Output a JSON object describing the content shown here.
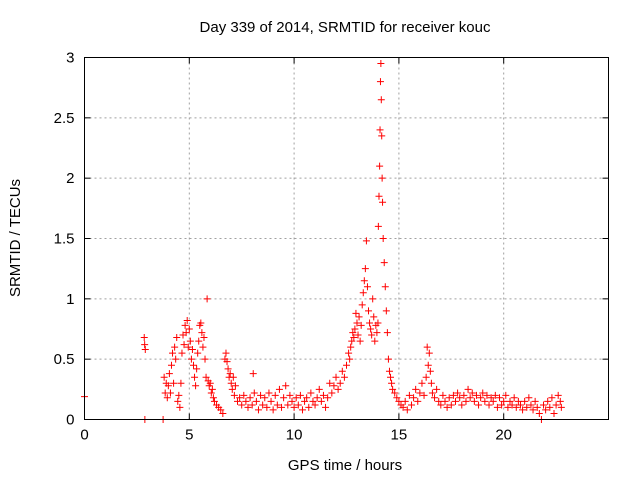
{
  "chart_data": {
    "type": "scatter",
    "title": "Day 339 of 2014, SRMTID for receiver kouc",
    "xlabel": "GPS time / hours",
    "ylabel": "SRMTID / TECUs",
    "xlim": [
      0,
      25
    ],
    "ylim": [
      0,
      3
    ],
    "xticks": [
      0,
      5,
      10,
      15,
      20
    ],
    "yticks": [
      0,
      0.5,
      1,
      1.5,
      2,
      2.5,
      3
    ],
    "xtick_labels": [
      "0",
      "5",
      "10",
      "15",
      "20"
    ],
    "ytick_labels": [
      "0",
      "0.5",
      "1",
      "1.5",
      "2",
      "2.5",
      "3"
    ],
    "grid": true,
    "marker": "+",
    "color": "#ff0000",
    "series": [
      {
        "name": "SRMTID",
        "points": [
          [
            0.0,
            0.19
          ],
          [
            2.85,
            0.68
          ],
          [
            2.87,
            0.62
          ],
          [
            2.9,
            0.58
          ],
          [
            2.88,
            0.0
          ],
          [
            3.75,
            0.0
          ],
          [
            3.8,
            0.35
          ],
          [
            3.85,
            0.22
          ],
          [
            3.9,
            0.3
          ],
          [
            3.95,
            0.18
          ],
          [
            4.0,
            0.28
          ],
          [
            4.05,
            0.38
          ],
          [
            4.1,
            0.22
          ],
          [
            4.15,
            0.45
          ],
          [
            4.2,
            0.55
          ],
          [
            4.25,
            0.3
          ],
          [
            4.3,
            0.6
          ],
          [
            4.35,
            0.5
          ],
          [
            4.4,
            0.68
          ],
          [
            4.45,
            0.15
          ],
          [
            4.5,
            0.2
          ],
          [
            4.55,
            0.1
          ],
          [
            4.6,
            0.3
          ],
          [
            4.65,
            0.55
          ],
          [
            4.7,
            0.7
          ],
          [
            4.75,
            0.62
          ],
          [
            4.8,
            0.78
          ],
          [
            4.85,
            0.72
          ],
          [
            4.9,
            0.82
          ],
          [
            4.95,
            0.6
          ],
          [
            5.0,
            0.75
          ],
          [
            5.05,
            0.65
          ],
          [
            5.1,
            0.5
          ],
          [
            5.15,
            0.58
          ],
          [
            5.2,
            0.45
          ],
          [
            5.25,
            0.35
          ],
          [
            5.3,
            0.28
          ],
          [
            5.35,
            0.42
          ],
          [
            5.4,
            0.55
          ],
          [
            5.45,
            0.65
          ],
          [
            5.5,
            0.78
          ],
          [
            5.55,
            0.8
          ],
          [
            5.6,
            0.72
          ],
          [
            5.65,
            0.6
          ],
          [
            5.7,
            0.68
          ],
          [
            5.75,
            0.5
          ],
          [
            5.8,
            0.35
          ],
          [
            5.85,
            1.0
          ],
          [
            5.9,
            0.32
          ],
          [
            5.95,
            0.28
          ],
          [
            6.0,
            0.3
          ],
          [
            6.05,
            0.22
          ],
          [
            6.1,
            0.25
          ],
          [
            6.15,
            0.18
          ],
          [
            6.2,
            0.15
          ],
          [
            6.3,
            0.12
          ],
          [
            6.4,
            0.1
          ],
          [
            6.5,
            0.08
          ],
          [
            6.6,
            0.05
          ],
          [
            6.7,
            0.5
          ],
          [
            6.75,
            0.55
          ],
          [
            6.8,
            0.48
          ],
          [
            6.85,
            0.42
          ],
          [
            6.9,
            0.35
          ],
          [
            6.95,
            0.38
          ],
          [
            7.0,
            0.3
          ],
          [
            7.05,
            0.25
          ],
          [
            7.1,
            0.35
          ],
          [
            7.15,
            0.2
          ],
          [
            7.2,
            0.28
          ],
          [
            7.3,
            0.15
          ],
          [
            7.4,
            0.18
          ],
          [
            7.5,
            0.12
          ],
          [
            7.6,
            0.2
          ],
          [
            7.7,
            0.15
          ],
          [
            7.8,
            0.1
          ],
          [
            7.9,
            0.18
          ],
          [
            8.0,
            0.12
          ],
          [
            8.05,
            0.38
          ],
          [
            8.1,
            0.22
          ],
          [
            8.2,
            0.15
          ],
          [
            8.3,
            0.08
          ],
          [
            8.4,
            0.2
          ],
          [
            8.5,
            0.12
          ],
          [
            8.6,
            0.18
          ],
          [
            8.7,
            0.1
          ],
          [
            8.8,
            0.22
          ],
          [
            8.9,
            0.15
          ],
          [
            9.0,
            0.08
          ],
          [
            9.1,
            0.2
          ],
          [
            9.2,
            0.12
          ],
          [
            9.3,
            0.25
          ],
          [
            9.4,
            0.1
          ],
          [
            9.5,
            0.18
          ],
          [
            9.6,
            0.28
          ],
          [
            9.7,
            0.12
          ],
          [
            9.8,
            0.2
          ],
          [
            9.9,
            0.15
          ],
          [
            10.0,
            0.1
          ],
          [
            10.1,
            0.18
          ],
          [
            10.2,
            0.12
          ],
          [
            10.3,
            0.2
          ],
          [
            10.4,
            0.08
          ],
          [
            10.5,
            0.15
          ],
          [
            10.6,
            0.18
          ],
          [
            10.7,
            0.1
          ],
          [
            10.8,
            0.22
          ],
          [
            10.9,
            0.15
          ],
          [
            11.0,
            0.12
          ],
          [
            11.1,
            0.18
          ],
          [
            11.2,
            0.25
          ],
          [
            11.3,
            0.15
          ],
          [
            11.4,
            0.2
          ],
          [
            11.5,
            0.1
          ],
          [
            11.6,
            0.18
          ],
          [
            11.7,
            0.3
          ],
          [
            11.8,
            0.22
          ],
          [
            11.9,
            0.28
          ],
          [
            12.0,
            0.35
          ],
          [
            12.1,
            0.25
          ],
          [
            12.2,
            0.3
          ],
          [
            12.3,
            0.4
          ],
          [
            12.4,
            0.35
          ],
          [
            12.5,
            0.45
          ],
          [
            12.6,
            0.55
          ],
          [
            12.65,
            0.5
          ],
          [
            12.7,
            0.6
          ],
          [
            12.75,
            0.65
          ],
          [
            12.8,
            0.72
          ],
          [
            12.85,
            0.68
          ],
          [
            12.9,
            0.75
          ],
          [
            12.95,
            0.88
          ],
          [
            13.0,
            0.8
          ],
          [
            13.05,
            0.7
          ],
          [
            13.1,
            0.85
          ],
          [
            13.15,
            0.65
          ],
          [
            13.2,
            0.78
          ],
          [
            13.25,
            0.95
          ],
          [
            13.3,
            1.05
          ],
          [
            13.35,
            1.15
          ],
          [
            13.4,
            1.25
          ],
          [
            13.45,
            1.48
          ],
          [
            13.5,
            1.1
          ],
          [
            13.55,
            0.9
          ],
          [
            13.6,
            0.8
          ],
          [
            13.65,
            0.75
          ],
          [
            13.7,
            0.7
          ],
          [
            13.75,
            1.0
          ],
          [
            13.8,
            0.85
          ],
          [
            13.85,
            0.65
          ],
          [
            13.9,
            0.78
          ],
          [
            13.95,
            0.72
          ],
          [
            14.0,
            0.8
          ],
          [
            14.02,
            1.6
          ],
          [
            14.05,
            1.85
          ],
          [
            14.08,
            2.1
          ],
          [
            14.1,
            2.4
          ],
          [
            14.12,
            2.8
          ],
          [
            14.14,
            2.95
          ],
          [
            14.16,
            2.65
          ],
          [
            14.18,
            2.35
          ],
          [
            14.2,
            2.0
          ],
          [
            14.22,
            1.8
          ],
          [
            14.25,
            1.5
          ],
          [
            14.3,
            1.3
          ],
          [
            14.35,
            1.1
          ],
          [
            14.4,
            0.9
          ],
          [
            14.45,
            0.72
          ],
          [
            14.5,
            0.5
          ],
          [
            14.55,
            0.4
          ],
          [
            14.6,
            0.35
          ],
          [
            14.65,
            0.3
          ],
          [
            14.7,
            0.25
          ],
          [
            14.8,
            0.22
          ],
          [
            14.9,
            0.18
          ],
          [
            15.0,
            0.15
          ],
          [
            15.1,
            0.12
          ],
          [
            15.2,
            0.1
          ],
          [
            15.3,
            0.15
          ],
          [
            15.4,
            0.08
          ],
          [
            15.5,
            0.2
          ],
          [
            15.6,
            0.12
          ],
          [
            15.7,
            0.18
          ],
          [
            15.8,
            0.25
          ],
          [
            15.9,
            0.15
          ],
          [
            16.0,
            0.22
          ],
          [
            16.1,
            0.3
          ],
          [
            16.2,
            0.2
          ],
          [
            16.3,
            0.35
          ],
          [
            16.35,
            0.6
          ],
          [
            16.4,
            0.45
          ],
          [
            16.45,
            0.55
          ],
          [
            16.5,
            0.4
          ],
          [
            16.55,
            0.3
          ],
          [
            16.6,
            0.22
          ],
          [
            16.7,
            0.18
          ],
          [
            16.8,
            0.25
          ],
          [
            16.9,
            0.15
          ],
          [
            17.0,
            0.12
          ],
          [
            17.1,
            0.2
          ],
          [
            17.2,
            0.15
          ],
          [
            17.3,
            0.1
          ],
          [
            17.4,
            0.18
          ],
          [
            17.5,
            0.12
          ],
          [
            17.6,
            0.2
          ],
          [
            17.7,
            0.15
          ],
          [
            17.8,
            0.22
          ],
          [
            17.9,
            0.18
          ],
          [
            18.0,
            0.12
          ],
          [
            18.1,
            0.2
          ],
          [
            18.2,
            0.15
          ],
          [
            18.3,
            0.25
          ],
          [
            18.4,
            0.18
          ],
          [
            18.5,
            0.22
          ],
          [
            18.6,
            0.15
          ],
          [
            18.7,
            0.2
          ],
          [
            18.8,
            0.12
          ],
          [
            18.9,
            0.18
          ],
          [
            19.0,
            0.22
          ],
          [
            19.1,
            0.15
          ],
          [
            19.2,
            0.2
          ],
          [
            19.3,
            0.12
          ],
          [
            19.4,
            0.18
          ],
          [
            19.5,
            0.15
          ],
          [
            19.6,
            0.2
          ],
          [
            19.7,
            0.1
          ],
          [
            19.8,
            0.18
          ],
          [
            19.9,
            0.12
          ],
          [
            20.0,
            0.15
          ],
          [
            20.1,
            0.2
          ],
          [
            20.2,
            0.1
          ],
          [
            20.3,
            0.15
          ],
          [
            20.4,
            0.12
          ],
          [
            20.5,
            0.18
          ],
          [
            20.6,
            0.1
          ],
          [
            20.7,
            0.15
          ],
          [
            20.8,
            0.12
          ],
          [
            20.9,
            0.08
          ],
          [
            21.0,
            0.15
          ],
          [
            21.1,
            0.1
          ],
          [
            21.2,
            0.18
          ],
          [
            21.3,
            0.12
          ],
          [
            21.4,
            0.08
          ],
          [
            21.5,
            0.15
          ],
          [
            21.6,
            0.1
          ],
          [
            21.7,
            0.05
          ],
          [
            21.8,
            0.0
          ],
          [
            21.9,
            0.12
          ],
          [
            22.0,
            0.08
          ],
          [
            22.1,
            0.15
          ],
          [
            22.2,
            0.1
          ],
          [
            22.3,
            0.18
          ],
          [
            22.4,
            0.05
          ],
          [
            22.5,
            0.12
          ],
          [
            22.6,
            0.2
          ],
          [
            22.7,
            0.15
          ],
          [
            22.75,
            0.1
          ]
        ]
      }
    ]
  }
}
